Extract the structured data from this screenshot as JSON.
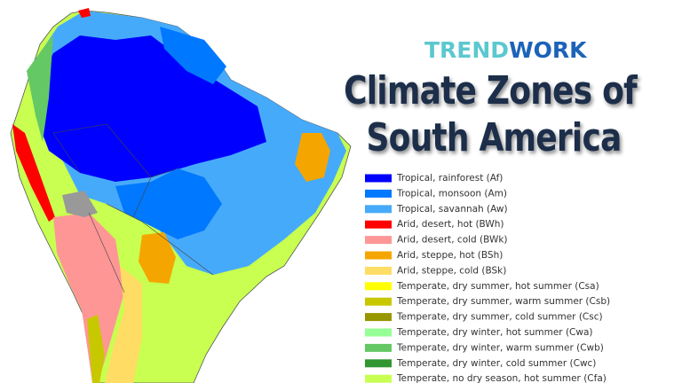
{
  "brand": {
    "parts": [
      {
        "text": "TREND",
        "color": "#5cc8cf"
      },
      {
        "text": "WORK",
        "color": "#1c63b8"
      }
    ]
  },
  "title": {
    "lines": [
      "Climate Zones of",
      "South America"
    ]
  },
  "legend": {
    "items": [
      {
        "label": "Tropical, rainforest (Af)",
        "color": "#0000fe"
      },
      {
        "label": "Tropical, monsoon (Am)",
        "color": "#0078ff"
      },
      {
        "label": "Tropical, savannah (Aw)",
        "color": "#46aafa"
      },
      {
        "label": "Arid, desert, hot (BWh)",
        "color": "#ff0000"
      },
      {
        "label": "Arid, desert, cold (BWk)",
        "color": "#ff9696"
      },
      {
        "label": "Arid, steppe, hot (BSh)",
        "color": "#f5a500"
      },
      {
        "label": "Arid, steppe, cold (BSk)",
        "color": "#ffdc64"
      },
      {
        "label": "Temperate, dry summer, hot summer (Csa)",
        "color": "#ffff00"
      },
      {
        "label": "Temperate, dry summer, warm summer (Csb)",
        "color": "#c8c800"
      },
      {
        "label": "Temperate, dry summer, cold summer (Csc)",
        "color": "#969600"
      },
      {
        "label": "Temperate, dry winter, hot summer (Cwa)",
        "color": "#96ff96"
      },
      {
        "label": "Temperate, dry winter, warm summer (Cwb)",
        "color": "#64c864"
      },
      {
        "label": "Temperate, dry winter, cold summer (Cwc)",
        "color": "#329632"
      },
      {
        "label": "Temperate, no dry season, hot summer (Cfa)",
        "color": "#c8ff50"
      }
    ]
  }
}
